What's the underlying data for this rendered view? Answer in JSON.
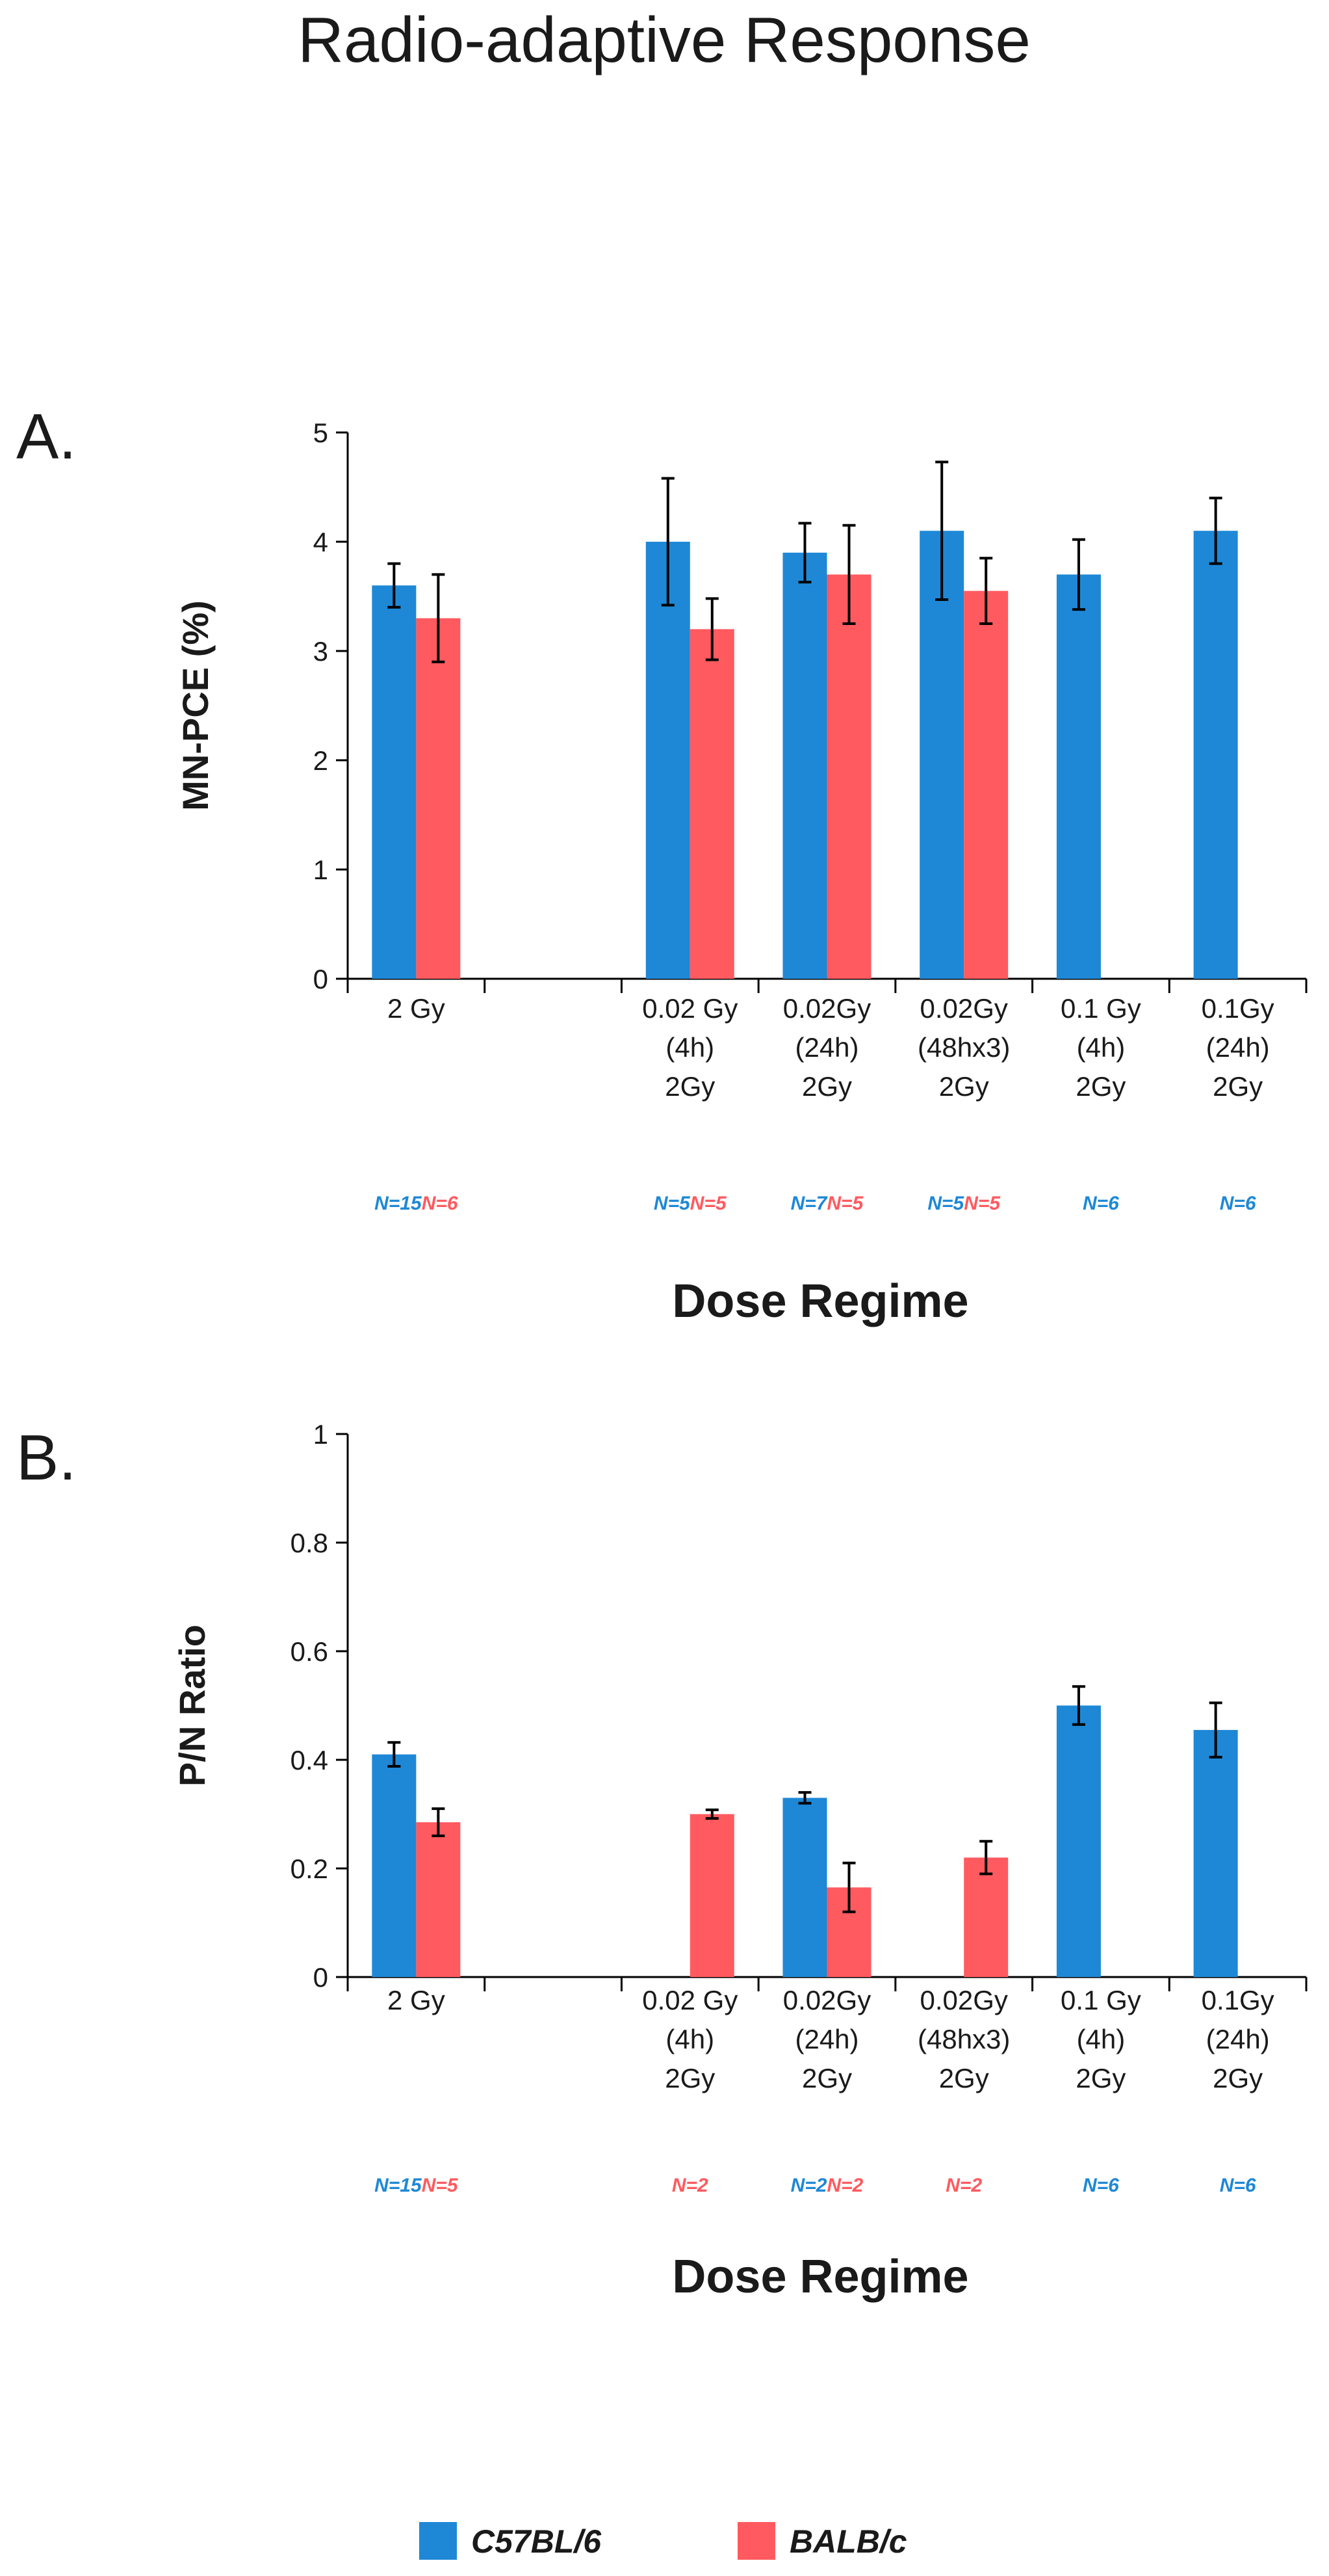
{
  "title": "Radio-adaptive Response",
  "colors": {
    "c57": "#1E88D6",
    "balb": "#FF5A5F",
    "axis": "#000000",
    "text": "#1a1a1a"
  },
  "legend": {
    "items": [
      {
        "key": "c57",
        "label": "C57BL/6"
      },
      {
        "key": "balb",
        "label": "BALB/c"
      }
    ]
  },
  "chart_data": [
    {
      "panel_label": "A.",
      "type": "bar",
      "ylabel": "MN-PCE (%)",
      "xlabel": "Dose Regime",
      "ylim": [
        0,
        5
      ],
      "yticks": [
        0,
        1,
        2,
        3,
        4,
        5
      ],
      "ytick_labels": [
        "0",
        "1",
        "2",
        "3",
        "4",
        "5"
      ],
      "categories": [
        [
          "2 Gy"
        ],
        [],
        [
          "0.02 Gy",
          "(4h)",
          "2Gy"
        ],
        [
          "0.02Gy",
          "(24h)",
          "2Gy"
        ],
        [
          "0.02Gy",
          "(48hx3)",
          "2Gy"
        ],
        [
          "0.1 Gy",
          "(4h)",
          "2Gy"
        ],
        [
          "0.1Gy",
          "(24h)",
          "2Gy"
        ]
      ],
      "series": [
        {
          "name": "C57BL/6",
          "key": "c57",
          "values": [
            3.6,
            null,
            4.0,
            3.9,
            4.1,
            3.7,
            4.1
          ],
          "errors": [
            0.2,
            null,
            0.58,
            0.27,
            0.63,
            0.32,
            0.3
          ],
          "n": [
            "N=15",
            "",
            "N=5",
            "N=7",
            "N=5",
            "N=6",
            "N=6"
          ]
        },
        {
          "name": "BALB/c",
          "key": "balb",
          "values": [
            3.3,
            null,
            3.2,
            3.7,
            3.55,
            null,
            null
          ],
          "errors": [
            0.4,
            null,
            0.28,
            0.45,
            0.3,
            null,
            null
          ],
          "n": [
            "N=6",
            "",
            "N=5",
            "N=5",
            "N=5",
            "",
            ""
          ]
        }
      ]
    },
    {
      "panel_label": "B.",
      "type": "bar",
      "ylabel": "P/N Ratio",
      "xlabel": "Dose Regime",
      "ylim": [
        0,
        1
      ],
      "yticks": [
        0,
        0.2,
        0.4,
        0.6,
        0.8,
        1
      ],
      "ytick_labels": [
        "0",
        "0.2",
        "0.4",
        "0.6",
        "0.8",
        "1"
      ],
      "categories": [
        [
          "2 Gy"
        ],
        [],
        [
          "0.02 Gy",
          "(4h)",
          "2Gy"
        ],
        [
          "0.02Gy",
          "(24h)",
          "2Gy"
        ],
        [
          "0.02Gy",
          "(48hx3)",
          "2Gy"
        ],
        [
          "0.1 Gy",
          "(4h)",
          "2Gy"
        ],
        [
          "0.1Gy",
          "(24h)",
          "2Gy"
        ]
      ],
      "series": [
        {
          "name": "C57BL/6",
          "key": "c57",
          "values": [
            0.41,
            null,
            null,
            0.33,
            null,
            0.5,
            0.455
          ],
          "errors": [
            0.022,
            null,
            null,
            0.01,
            null,
            0.035,
            0.05
          ],
          "n": [
            "N=15",
            "",
            "",
            "N=2",
            "",
            "N=6",
            "N=6"
          ]
        },
        {
          "name": "BALB/c",
          "key": "balb",
          "values": [
            0.285,
            null,
            0.3,
            0.165,
            0.22,
            null,
            null
          ],
          "errors": [
            0.025,
            null,
            0.008,
            0.045,
            0.03,
            null,
            null
          ],
          "n": [
            "N=5",
            "",
            "N=2",
            "N=2",
            "N=2",
            "",
            ""
          ]
        }
      ]
    }
  ]
}
